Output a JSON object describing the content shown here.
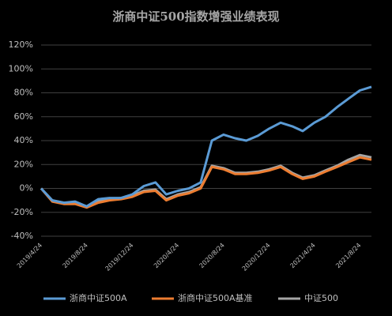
{
  "chart_data": {
    "type": "line",
    "title": "浙商中证500指数增强业绩表现",
    "x": [
      "2019/4/24",
      "2019/5/24",
      "2019/6/24",
      "2019/7/24",
      "2019/8/24",
      "2019/9/24",
      "2019/10/24",
      "2019/11/24",
      "2019/12/24",
      "2020/1/24",
      "2020/2/24",
      "2020/3/24",
      "2020/4/24",
      "2020/5/24",
      "2020/6/24",
      "2020/7/24",
      "2020/8/24",
      "2020/9/24",
      "2020/10/24",
      "2020/11/24",
      "2020/12/24",
      "2021/1/24",
      "2021/2/24",
      "2021/3/24",
      "2021/4/24",
      "2021/5/24",
      "2021/6/24",
      "2021/7/24",
      "2021/8/24",
      "2021/9/24"
    ],
    "series": [
      {
        "name": "浙商中证500A",
        "color": "#5b9bd5",
        "values": [
          0,
          -10,
          -12,
          -11,
          -15,
          -9,
          -8,
          -8,
          -5,
          2,
          5,
          -5,
          -2,
          0,
          5,
          40,
          45,
          42,
          40,
          44,
          50,
          55,
          52,
          48,
          55,
          60,
          68,
          75,
          82,
          85
        ]
      },
      {
        "name": "浙商中证500A基准",
        "color": "#ed7d31",
        "values": [
          0,
          -11,
          -13,
          -13,
          -16,
          -12,
          -10,
          -9,
          -7,
          -3,
          -2,
          -10,
          -6,
          -4,
          0,
          18,
          16,
          12,
          12,
          13,
          15,
          18,
          12,
          8,
          10,
          14,
          18,
          22,
          26,
          24
        ]
      },
      {
        "name": "中证500",
        "color": "#a5a5a5",
        "values": [
          0,
          -10,
          -12,
          -12,
          -15,
          -11,
          -9,
          -8,
          -6,
          -2,
          -1,
          -9,
          -5,
          -3,
          1,
          19,
          17,
          13,
          13,
          14,
          16,
          19,
          13,
          9,
          11,
          15,
          19,
          24,
          28,
          26
        ]
      }
    ],
    "xlim": [
      "2019/4/24",
      "2021/9/24"
    ],
    "xticks": [
      "2019/4/24",
      "2019/8/24",
      "2019/12/24",
      "2020/4/24",
      "2020/8/24",
      "2020/12/24",
      "2021/4/24",
      "2021/8/24"
    ],
    "ylim": [
      -40,
      120
    ],
    "yticks": [
      {
        "value": -40,
        "label": "-40%"
      },
      {
        "value": -20,
        "label": "-20%"
      },
      {
        "value": 0,
        "label": "0%"
      },
      {
        "value": 20,
        "label": "20%"
      },
      {
        "value": 40,
        "label": "40%"
      },
      {
        "value": 60,
        "label": "60%"
      },
      {
        "value": 80,
        "label": "80%"
      },
      {
        "value": 100,
        "label": "100%"
      },
      {
        "value": 120,
        "label": "120%"
      }
    ],
    "grid": true,
    "legend": "bottom"
  }
}
